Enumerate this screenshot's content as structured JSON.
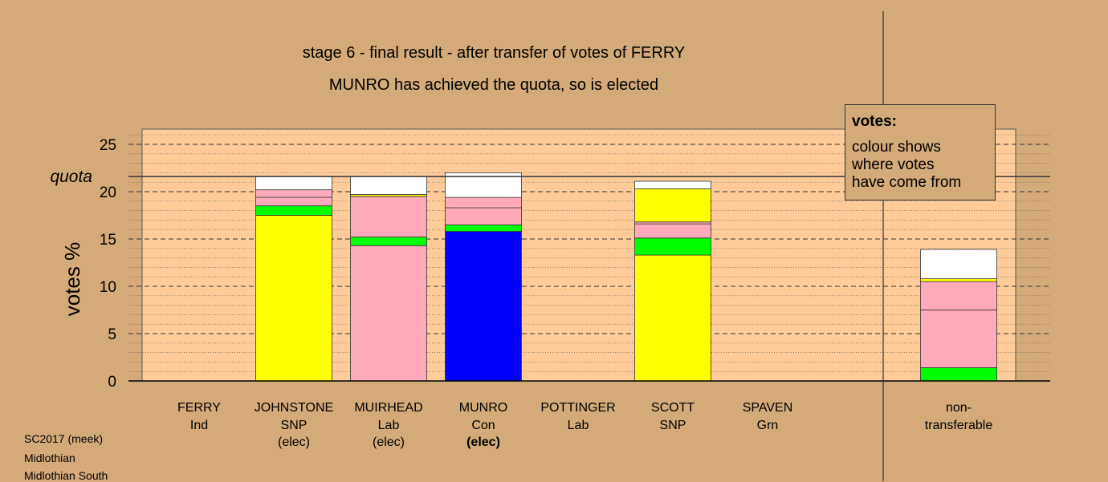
{
  "title_line1": "stage 6 - final result - after transfer of votes of FERRY",
  "title_line2": "MUNRO has achieved the quota, so is elected",
  "legend": {
    "title": "votes:",
    "text": "colour shows\nwhere votes\nhave come from"
  },
  "footer": {
    "line1": "SC2017 (meek)",
    "line2": "Midlothian",
    "line3": "Midlothian South"
  },
  "colors": {
    "background": "#d4aa78",
    "plot_area": "#ffcc99",
    "SNP": "#ffff00",
    "Lab": "#ffaabb",
    "Con": "#0000ff",
    "Grn": "#00ff00",
    "Ind": "#ffffff"
  },
  "chart_data": {
    "type": "bar",
    "stacked": true,
    "ylabel": "votes %",
    "ylim": [
      0,
      26.5
    ],
    "yticks": [
      0,
      5,
      10,
      15,
      20,
      25
    ],
    "quota": 21.6,
    "quota_label": "quota",
    "grid": true,
    "legend_position": "top-right",
    "candidates": [
      {
        "name": "FERRY",
        "party": "Ind",
        "status": "",
        "segments": []
      },
      {
        "name": "JOHNSTONE",
        "party": "SNP",
        "status": "(elec)",
        "segments": [
          {
            "source": "SNP",
            "color": "#ffff00",
            "value": 17.5
          },
          {
            "source": "Grn",
            "color": "#00ff00",
            "value": 1.0
          },
          {
            "source": "Lab",
            "color": "#ffaabb",
            "value": 0.9
          },
          {
            "source": "Lab",
            "color": "#ffaabb",
            "value": 0.8
          },
          {
            "source": "Ind",
            "color": "#ffffff",
            "value": 1.4
          }
        ]
      },
      {
        "name": "MUIRHEAD",
        "party": "Lab",
        "status": "(elec)",
        "segments": [
          {
            "source": "Lab",
            "color": "#ffaabb",
            "value": 14.3
          },
          {
            "source": "Grn",
            "color": "#00ff00",
            "value": 0.9
          },
          {
            "source": "Lab",
            "color": "#ffaabb",
            "value": 4.3
          },
          {
            "source": "SNP",
            "color": "#ffff00",
            "value": 0.2
          },
          {
            "source": "Ind",
            "color": "#ffffff",
            "value": 1.9
          }
        ]
      },
      {
        "name": "MUNRO",
        "party": "Con",
        "status": "(elec)",
        "segments": [
          {
            "source": "Con",
            "color": "#0000ff",
            "value": 15.8
          },
          {
            "source": "Grn",
            "color": "#00ff00",
            "value": 0.7
          },
          {
            "source": "Lab",
            "color": "#ffaabb",
            "value": 1.8
          },
          {
            "source": "Lab",
            "color": "#ffaabb",
            "value": 1.1
          },
          {
            "source": "Ind",
            "color": "#ffffff",
            "value": 2.6
          }
        ]
      },
      {
        "name": "POTTINGER",
        "party": "Lab",
        "status": "",
        "segments": []
      },
      {
        "name": "SCOTT",
        "party": "SNP",
        "status": "",
        "segments": [
          {
            "source": "SNP",
            "color": "#ffff00",
            "value": 13.3
          },
          {
            "source": "Grn",
            "color": "#00ff00",
            "value": 1.8
          },
          {
            "source": "Lab",
            "color": "#ffaabb",
            "value": 1.5
          },
          {
            "source": "Lab",
            "color": "#ffaabb",
            "value": 0.2
          },
          {
            "source": "SNP",
            "color": "#ffff00",
            "value": 3.5
          },
          {
            "source": "Ind",
            "color": "#ffffff",
            "value": 0.8
          }
        ]
      },
      {
        "name": "SPAVEN",
        "party": "Grn",
        "status": "",
        "segments": []
      },
      {
        "name": "non-",
        "party": "transferable",
        "status": "",
        "segments": [
          {
            "source": "Grn",
            "color": "#00ff00",
            "value": 1.4
          },
          {
            "source": "Lab",
            "color": "#ffaabb",
            "value": 6.1
          },
          {
            "source": "Lab",
            "color": "#ffaabb",
            "value": 3.0
          },
          {
            "source": "SNP",
            "color": "#ffff00",
            "value": 0.3
          },
          {
            "source": "Ind",
            "color": "#ffffff",
            "value": 3.1
          }
        ]
      }
    ]
  }
}
